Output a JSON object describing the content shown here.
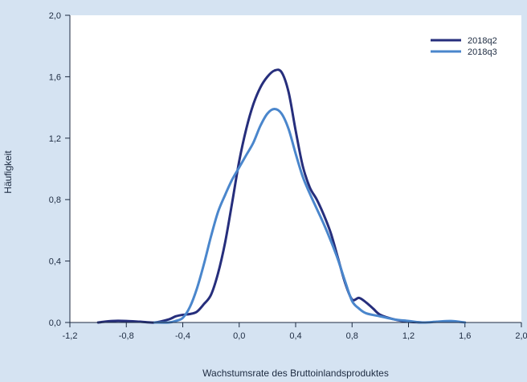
{
  "chart_data": {
    "type": "line",
    "title": "",
    "xlabel": "Wachstumsrate des Bruttoinlandsproduktes",
    "ylabel": "Häufigkeit",
    "xlim": [
      -1.2,
      2.0
    ],
    "ylim": [
      0.0,
      2.0
    ],
    "x_ticks": [
      -1.2,
      -0.8,
      -0.4,
      0.0,
      0.4,
      0.8,
      1.2,
      1.6,
      2.0
    ],
    "x_tick_labels": [
      "-1,2",
      "-0,8",
      "-0,4",
      "0,0",
      "0,4",
      "0,8",
      "1,2",
      "1,6",
      "2,0"
    ],
    "y_ticks": [
      0.0,
      0.4,
      0.8,
      1.2,
      1.6,
      2.0
    ],
    "y_tick_labels": [
      "0,0",
      "0,4",
      "0,8",
      "1,2",
      "1,6",
      "2,0"
    ],
    "grid": false,
    "legend_position": "top-right",
    "background_color": "#d5e3f2",
    "plot_background_color": "#ffffff",
    "series": [
      {
        "name": "2018q2",
        "color": "#262e7c",
        "x": [
          -1.0,
          -0.9,
          -0.8,
          -0.7,
          -0.6,
          -0.5,
          -0.45,
          -0.4,
          -0.35,
          -0.3,
          -0.25,
          -0.2,
          -0.15,
          -0.1,
          -0.05,
          0.0,
          0.05,
          0.1,
          0.15,
          0.2,
          0.25,
          0.3,
          0.35,
          0.4,
          0.45,
          0.5,
          0.55,
          0.6,
          0.65,
          0.7,
          0.75,
          0.8,
          0.85,
          0.9,
          0.95,
          1.0,
          1.1,
          1.2,
          1.3
        ],
        "y": [
          0.0,
          0.01,
          0.01,
          0.005,
          0.0,
          0.02,
          0.04,
          0.05,
          0.055,
          0.07,
          0.12,
          0.18,
          0.32,
          0.52,
          0.78,
          1.05,
          1.26,
          1.42,
          1.53,
          1.6,
          1.64,
          1.63,
          1.5,
          1.25,
          1.02,
          0.88,
          0.8,
          0.7,
          0.58,
          0.42,
          0.26,
          0.15,
          0.16,
          0.13,
          0.09,
          0.05,
          0.02,
          0.005,
          0.0
        ]
      },
      {
        "name": "2018q3",
        "color": "#4a86cc",
        "x": [
          -0.6,
          -0.5,
          -0.45,
          -0.4,
          -0.35,
          -0.3,
          -0.25,
          -0.2,
          -0.15,
          -0.1,
          -0.05,
          0.0,
          0.05,
          0.1,
          0.15,
          0.2,
          0.25,
          0.3,
          0.35,
          0.4,
          0.45,
          0.5,
          0.55,
          0.6,
          0.65,
          0.7,
          0.75,
          0.8,
          0.85,
          0.9,
          1.0,
          1.1,
          1.2,
          1.3,
          1.4,
          1.5,
          1.6
        ],
        "y": [
          0.0,
          0.0,
          0.01,
          0.03,
          0.1,
          0.22,
          0.38,
          0.56,
          0.72,
          0.83,
          0.93,
          1.01,
          1.09,
          1.17,
          1.28,
          1.36,
          1.39,
          1.36,
          1.26,
          1.1,
          0.95,
          0.84,
          0.74,
          0.64,
          0.53,
          0.41,
          0.27,
          0.14,
          0.09,
          0.06,
          0.04,
          0.02,
          0.01,
          0.0,
          0.005,
          0.01,
          0.0
        ]
      }
    ]
  }
}
